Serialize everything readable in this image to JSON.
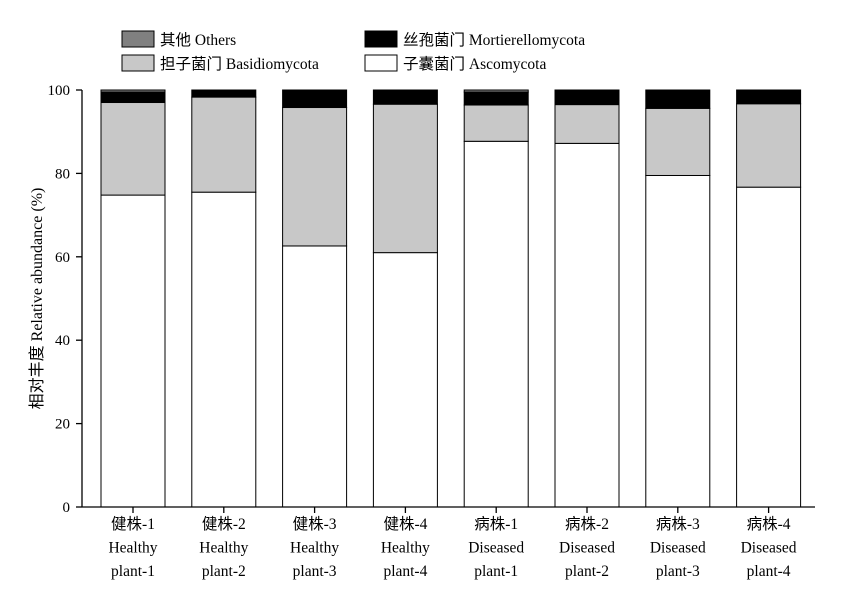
{
  "chart_data": {
    "type": "bar",
    "stacked": true,
    "title": "",
    "ylabel": "相对丰度 Relative abundance (%)",
    "xlabel": "",
    "ylim": [
      0,
      100
    ],
    "yticks": [
      0,
      20,
      40,
      60,
      80,
      100
    ],
    "grid": false,
    "legend_position": "top",
    "categories": [
      [
        "健株-1",
        "Healthy",
        "plant-1"
      ],
      [
        "健株-2",
        "Healthy",
        "plant-2"
      ],
      [
        "健株-3",
        "Healthy",
        "plant-3"
      ],
      [
        "健株-4",
        "Healthy",
        "plant-4"
      ],
      [
        "病株-1",
        "Diseased",
        "plant-1"
      ],
      [
        "病株-2",
        "Diseased",
        "plant-2"
      ],
      [
        "病株-3",
        "Diseased",
        "plant-3"
      ],
      [
        "病株-4",
        "Diseased",
        "plant-4"
      ]
    ],
    "series": [
      {
        "name": "子囊菌门 Ascomycota",
        "color": "#ffffff",
        "values": [
          74.8,
          75.5,
          62.6,
          61.0,
          87.7,
          87.2,
          79.5,
          76.7
        ]
      },
      {
        "name": "担子菌门 Basidiomycota",
        "color": "#c8c8c8",
        "values": [
          22.2,
          22.8,
          33.2,
          35.6,
          8.7,
          9.3,
          16.1,
          20.0
        ]
      },
      {
        "name": "丝孢菌门 Mortierellomycota",
        "color": "#000000",
        "values": [
          2.5,
          1.7,
          4.2,
          3.4,
          3.1,
          3.5,
          4.4,
          3.3
        ]
      },
      {
        "name": "其他 Others",
        "color": "#808080",
        "values": [
          0.5,
          0.0,
          0.0,
          0.0,
          0.5,
          0.0,
          0.0,
          0.0
        ]
      }
    ],
    "legend": [
      {
        "name": "其他 Others",
        "color": "#808080"
      },
      {
        "name": "丝孢菌门 Mortierellomycota",
        "color": "#000000"
      },
      {
        "name": "担子菌门 Basidiomycota",
        "color": "#c8c8c8"
      },
      {
        "name": "子囊菌门 Ascomycota",
        "color": "#ffffff"
      }
    ]
  }
}
